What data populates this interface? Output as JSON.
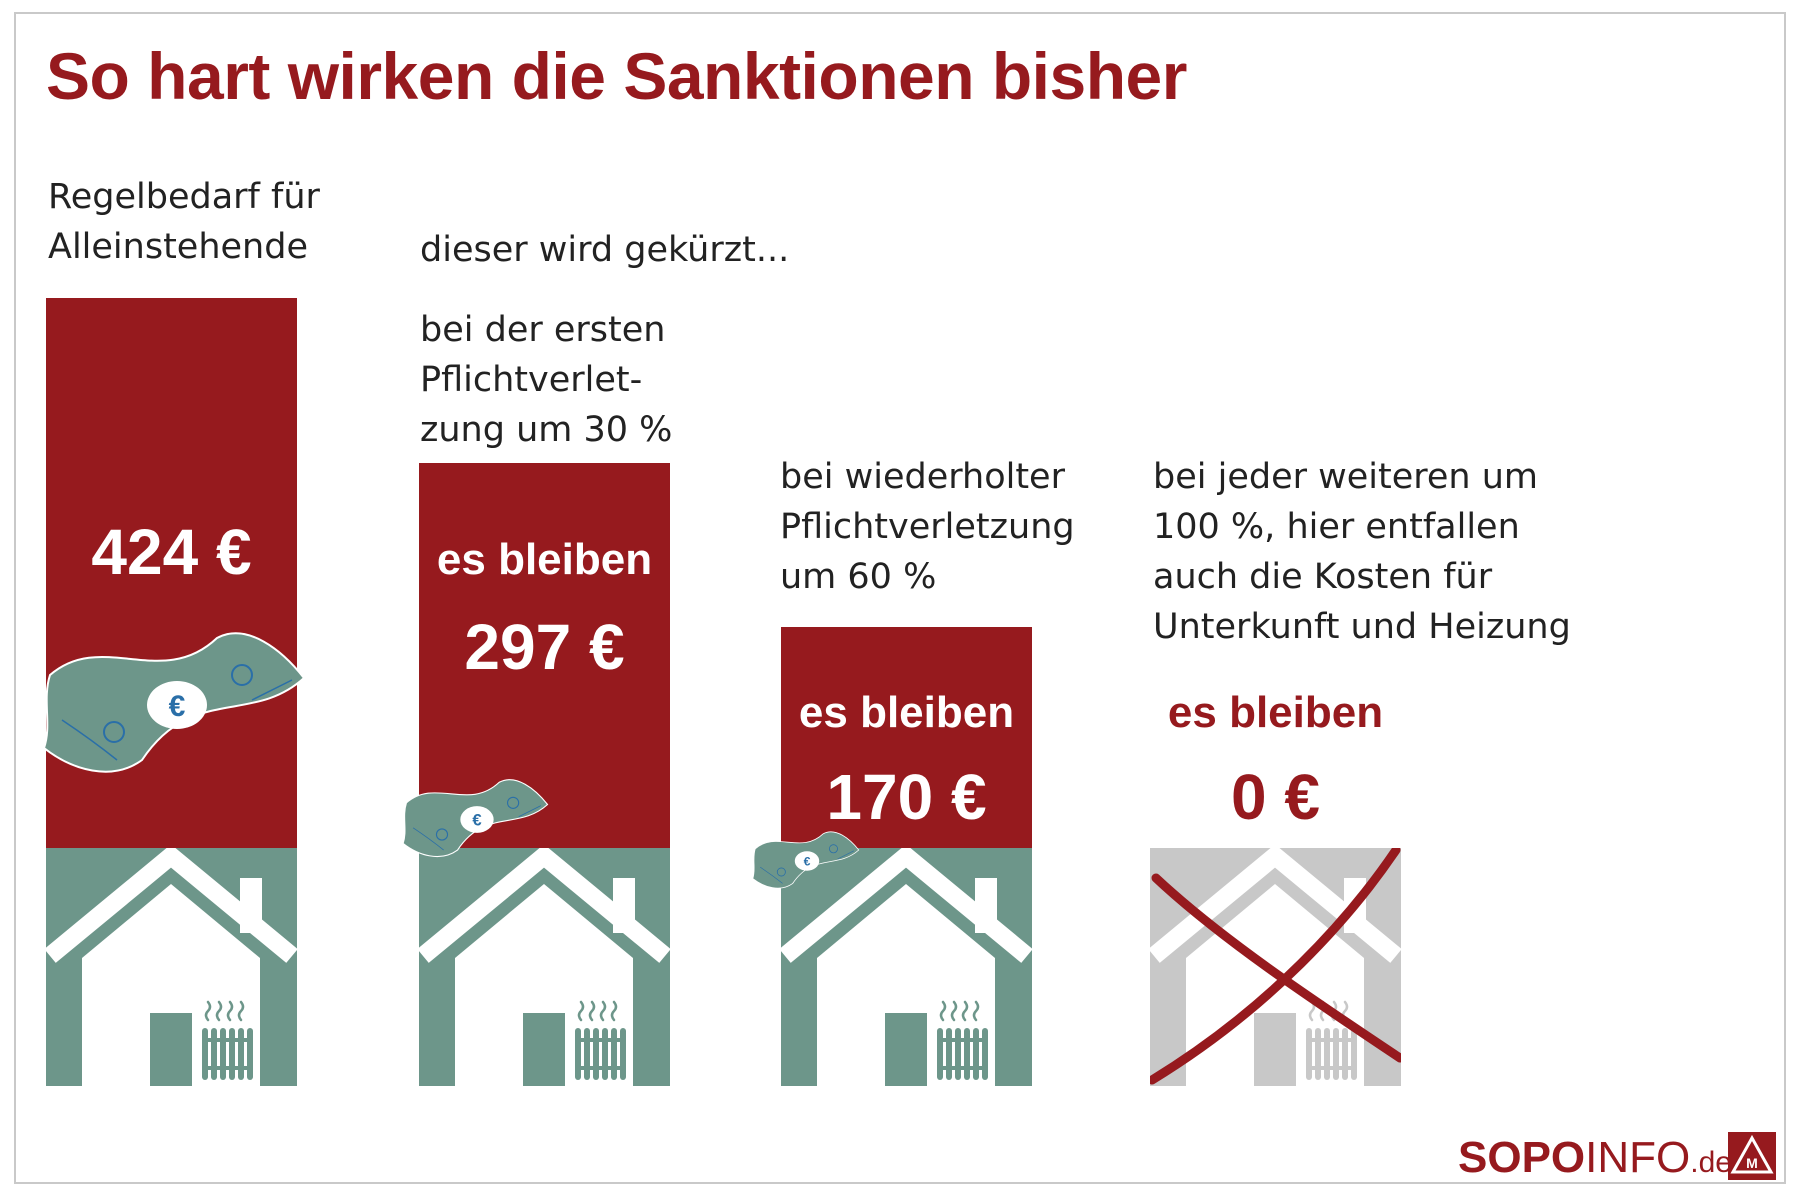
{
  "title": "So hart wirken die Sanktionen bisher",
  "intro_label": "dieser wird gekürzt...",
  "colors": {
    "red": "#961a1e",
    "green": "#6d968a",
    "gray": "#c8c8c8",
    "white": "#ffffff"
  },
  "chart_data": {
    "type": "bar",
    "unit": "€",
    "categories": [
      "Regelbedarf für Alleinstehende",
      "bei der ersten Pflichtverletzung um 30 %",
      "bei wiederholter Pflichtverletzung um 60 %",
      "bei jeder weiteren um 100 %, hier entfallen auch die Kosten für Unterkunft und Heizung"
    ],
    "values": [
      424,
      297,
      170,
      0
    ],
    "columns": [
      {
        "label": "Regelbedarf für\nAlleinstehende",
        "prefix": "",
        "value_label": "424 €",
        "value": 424,
        "house": "house-icon"
      },
      {
        "label": "bei der ersten\nPflichtverlet-\nzung um 30 %",
        "prefix": "es bleiben",
        "value_label": "297 €",
        "value": 297,
        "house": "house-icon"
      },
      {
        "label": "bei wiederholter\nPflichtverletzung\num 60 %",
        "prefix": "es bleiben",
        "value_label": "170 €",
        "value": 170,
        "house": "house-icon"
      },
      {
        "label": "bei jeder weiteren um\n100 %, hier entfallen\nauch die Kosten für\nUnterkunft und Heizung",
        "prefix": "es bleiben",
        "value_label": "0 €",
        "value": 0,
        "house": "crossed-out-house-icon"
      }
    ]
  },
  "footer": {
    "brand_a": "SOPO",
    "brand_b": "INFO",
    "brand_c": ".de",
    "logo": "ig-metall-logo"
  }
}
